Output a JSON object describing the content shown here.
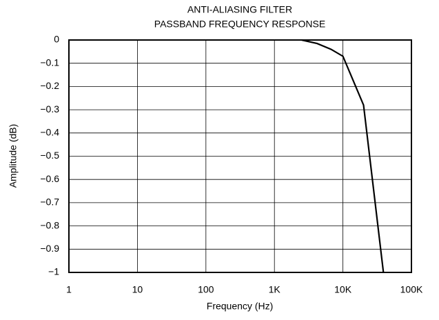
{
  "chart_data": {
    "type": "line",
    "title": "ANTI-ALIASING FILTER",
    "subtitle": "PASSBAND FREQUENCY RESPONSE",
    "xlabel": "Frequency (Hz)",
    "ylabel": "Amplitude (dB)",
    "xscale": "log",
    "grid": true,
    "xlim": [
      1,
      100000
    ],
    "ylim": [
      -1,
      0
    ],
    "xticks": [
      1,
      10,
      100,
      {
        "value": 1000,
        "label": "1K"
      },
      {
        "value": 10000,
        "label": "10K"
      },
      {
        "value": 100000,
        "label": "100K"
      }
    ],
    "yticks": [
      0,
      {
        "value": -0.1,
        "label": "−0.1"
      },
      {
        "value": -0.2,
        "label": "−0.2"
      },
      {
        "value": -0.3,
        "label": "−0.3"
      },
      {
        "value": -0.4,
        "label": "−0.4"
      },
      {
        "value": -0.5,
        "label": "−0.5"
      },
      {
        "value": -0.6,
        "label": "−0.6"
      },
      {
        "value": -0.7,
        "label": "−0.7"
      },
      {
        "value": -0.8,
        "label": "−0.8"
      },
      {
        "value": -0.9,
        "label": "−0.9"
      },
      {
        "value": -1,
        "label": "−1"
      }
    ],
    "series": [
      {
        "color": "#000000",
        "x": [
          2500,
          4200,
          6700,
          10000,
          20000,
          39000
        ],
        "values": [
          0,
          -0.015,
          -0.04,
          -0.07,
          -0.28,
          -1
        ]
      }
    ]
  }
}
